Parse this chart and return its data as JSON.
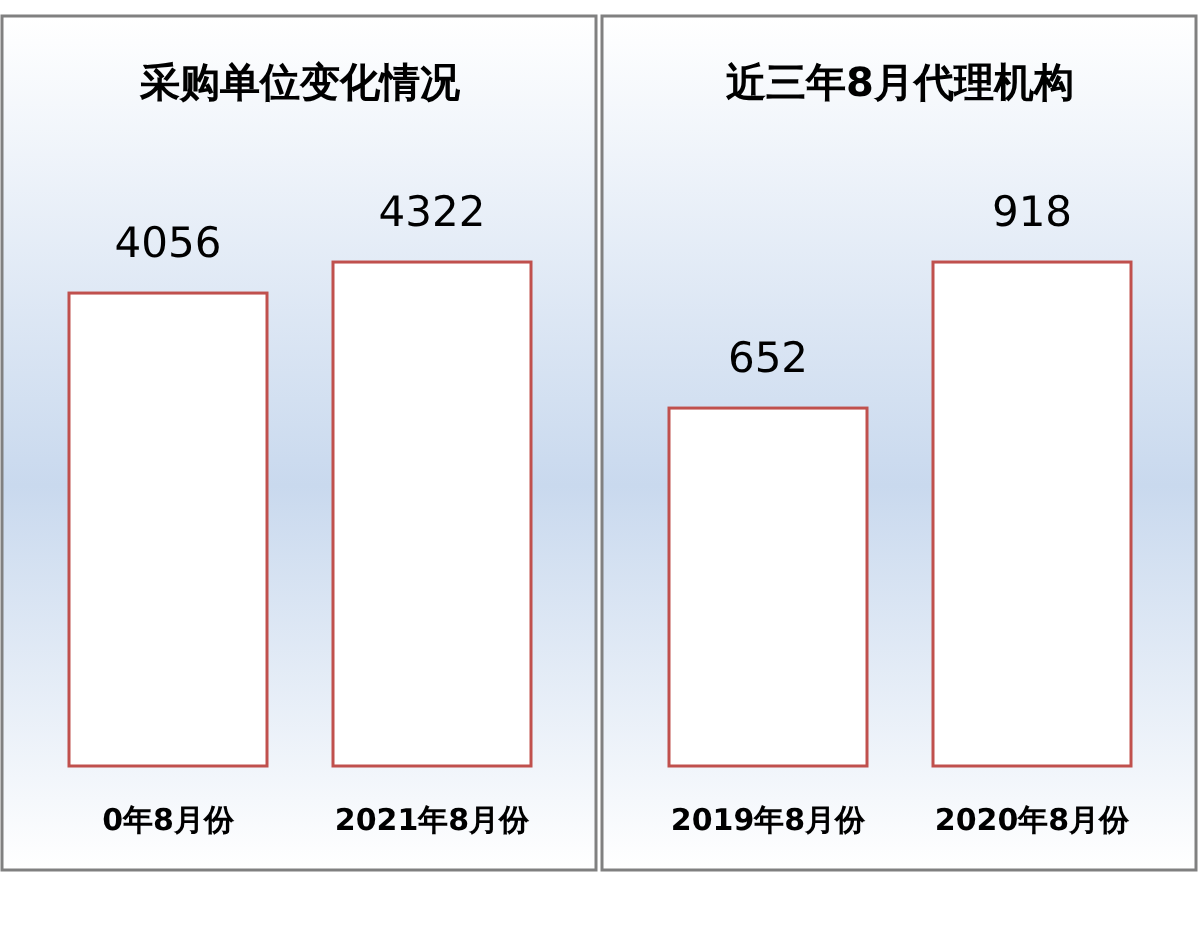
{
  "chart_data": [
    {
      "type": "bar",
      "title": "采购单位变化情况",
      "categories": [
        "0年8月份",
        "2021年8月份"
      ],
      "values": [
        4056,
        4322
      ],
      "color": "#c0504d",
      "data_labels": true
    },
    {
      "type": "bar",
      "title": "近三年8月代理机构",
      "categories": [
        "2019年8月份",
        "2020年8月份"
      ],
      "values": [
        652,
        918
      ],
      "color": "#c0504d",
      "data_labels": true
    }
  ]
}
